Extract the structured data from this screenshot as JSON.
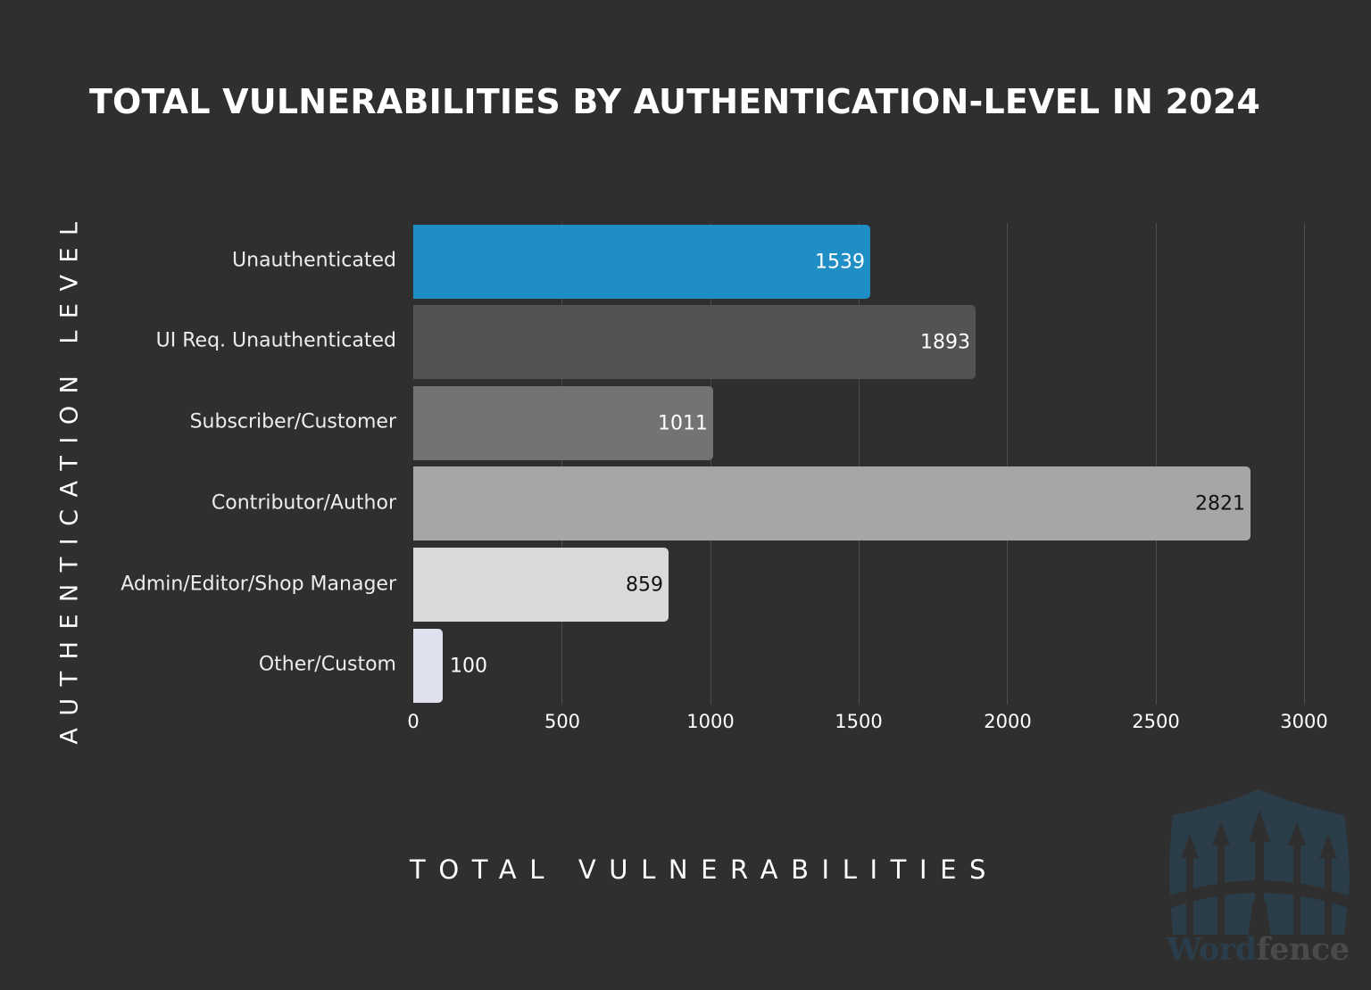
{
  "header": {
    "title": "TOTAL VULNERABILITIES BY AUTHENTICATION-LEVEL IN 2024"
  },
  "axes": {
    "ylabel": "AUTHENTICATION LEVEL",
    "xlabel": "TOTAL VULNERABILITIES",
    "xticks": [
      "0",
      "500",
      "1000",
      "1500",
      "2000",
      "2500",
      "3000"
    ]
  },
  "bars": [
    {
      "label": "Unauthenticated",
      "value": "1539",
      "color": "#1f8ec5",
      "text_color": "#ffffff"
    },
    {
      "label": "UI Req. Unauthenticated",
      "value": "1893",
      "color": "#535353",
      "text_color": "#ffffff"
    },
    {
      "label": "Subscriber/Customer",
      "value": "1011",
      "color": "#737373",
      "text_color": "#ffffff"
    },
    {
      "label": "Contributor/Author",
      "value": "2821",
      "color": "#a6a6a6",
      "text_color": "#111111"
    },
    {
      "label": "Admin/Editor/Shop Manager",
      "value": "859",
      "color": "#d9d9d9",
      "text_color": "#111111"
    },
    {
      "label": "Other/Custom",
      "value": "100",
      "color": "#dfe1ee",
      "text_color": "#ffffff"
    }
  ],
  "logo": {
    "word_part": "Word",
    "fence_part": "fence"
  },
  "colors": {
    "background": "#2f2f2f",
    "gridline": "#4d4d4d",
    "accent": "#1f8ec5"
  },
  "chart_data": {
    "type": "bar",
    "orientation": "horizontal",
    "title": "TOTAL VULNERABILITIES BY AUTHENTICATION-LEVEL IN 2024",
    "xlabel": "TOTAL VULNERABILITIES",
    "ylabel": "AUTHENTICATION LEVEL",
    "categories": [
      "Unauthenticated",
      "UI Req. Unauthenticated",
      "Subscriber/Customer",
      "Contributor/Author",
      "Admin/Editor/Shop Manager",
      "Other/Custom"
    ],
    "values": [
      1539,
      1893,
      1011,
      2821,
      859,
      100
    ],
    "xlim": [
      0,
      3000
    ],
    "xticks": [
      0,
      500,
      1000,
      1500,
      2000,
      2500,
      3000
    ],
    "grid": "vertical",
    "legend": "none",
    "data_labels": true
  }
}
